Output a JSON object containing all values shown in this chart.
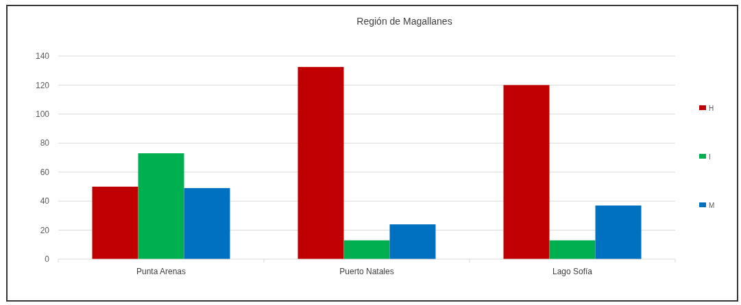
{
  "chart_data": {
    "type": "bar",
    "title": "Región de Magallanes",
    "categories": [
      "Punta Arenas",
      "Puerto Natales",
      "Lago Sofía"
    ],
    "series": [
      {
        "name": "H",
        "color": "#c00000",
        "values": [
          50,
          132.5,
          120
        ]
      },
      {
        "name": "I",
        "color": "#00b050",
        "values": [
          73,
          13,
          13
        ]
      },
      {
        "name": "M",
        "color": "#0070c0",
        "values": [
          49,
          24,
          37
        ]
      }
    ],
    "ylim": [
      0,
      140
    ],
    "yticks": [
      0,
      20,
      40,
      60,
      80,
      100,
      120,
      140
    ],
    "grid": "y",
    "legend": "right"
  }
}
